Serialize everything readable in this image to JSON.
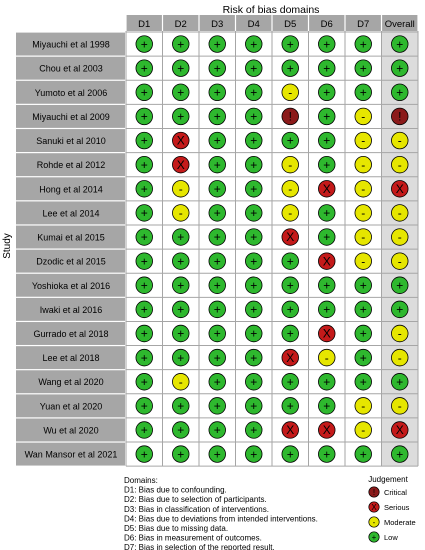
{
  "chart_data": {
    "type": "table",
    "title": "Risk of bias domains",
    "ylabel": "Study",
    "domains": [
      "D1",
      "D2",
      "D3",
      "D4",
      "D5",
      "D6",
      "D7",
      "Overall"
    ],
    "studies": [
      {
        "name": "Miyauchi et al 1998",
        "judgements": [
          "Low",
          "Low",
          "Low",
          "Low",
          "Low",
          "Low",
          "Low",
          "Low"
        ]
      },
      {
        "name": "Chou et al 2003",
        "judgements": [
          "Low",
          "Low",
          "Low",
          "Low",
          "Low",
          "Low",
          "Low",
          "Low"
        ]
      },
      {
        "name": "Yumoto et al 2006",
        "judgements": [
          "Low",
          "Low",
          "Low",
          "Low",
          "Moderate",
          "Low",
          "Low",
          "Low"
        ]
      },
      {
        "name": "Miyauchi et al 2009",
        "judgements": [
          "Low",
          "Low",
          "Low",
          "Low",
          "Critical",
          "Low",
          "Moderate",
          "Critical"
        ]
      },
      {
        "name": "Sanuki et al 2010",
        "judgements": [
          "Low",
          "Serious",
          "Low",
          "Low",
          "Low",
          "Low",
          "Moderate",
          "Moderate"
        ]
      },
      {
        "name": "Rohde et al 2012",
        "judgements": [
          "Low",
          "Serious",
          "Low",
          "Low",
          "Moderate",
          "Low",
          "Moderate",
          "Moderate"
        ]
      },
      {
        "name": "Hong et al 2014",
        "judgements": [
          "Low",
          "Moderate",
          "Low",
          "Low",
          "Moderate",
          "Serious",
          "Moderate",
          "Serious"
        ]
      },
      {
        "name": "Lee et al 2014",
        "judgements": [
          "Low",
          "Moderate",
          "Low",
          "Low",
          "Moderate",
          "Low",
          "Moderate",
          "Moderate"
        ]
      },
      {
        "name": "Kumai et al 2015",
        "judgements": [
          "Low",
          "Low",
          "Low",
          "Low",
          "Serious",
          "Low",
          "Moderate",
          "Moderate"
        ]
      },
      {
        "name": "Dzodic et al 2015",
        "judgements": [
          "Low",
          "Low",
          "Low",
          "Low",
          "Low",
          "Serious",
          "Moderate",
          "Moderate"
        ]
      },
      {
        "name": "Yoshioka et al 2016",
        "judgements": [
          "Low",
          "Low",
          "Low",
          "Low",
          "Low",
          "Low",
          "Low",
          "Low"
        ]
      },
      {
        "name": "Iwaki et al 2016",
        "judgements": [
          "Low",
          "Low",
          "Low",
          "Low",
          "Low",
          "Low",
          "Low",
          "Low"
        ]
      },
      {
        "name": "Gurrado et al 2018",
        "judgements": [
          "Low",
          "Low",
          "Low",
          "Low",
          "Low",
          "Serious",
          "Low",
          "Moderate"
        ]
      },
      {
        "name": "Lee et al 2018",
        "judgements": [
          "Low",
          "Low",
          "Low",
          "Low",
          "Serious",
          "Moderate",
          "Low",
          "Moderate"
        ]
      },
      {
        "name": "Wang et al 2020",
        "judgements": [
          "Low",
          "Moderate",
          "Low",
          "Low",
          "Low",
          "Low",
          "Low",
          "Low"
        ]
      },
      {
        "name": "Yuan et al 2020",
        "judgements": [
          "Low",
          "Low",
          "Low",
          "Low",
          "Low",
          "Low",
          "Moderate",
          "Moderate"
        ]
      },
      {
        "name": "Wu et al 2020",
        "judgements": [
          "Low",
          "Low",
          "Low",
          "Low",
          "Serious",
          "Serious",
          "Moderate",
          "Serious"
        ]
      },
      {
        "name": "Wan Mansor et al 2021",
        "judgements": [
          "Low",
          "Low",
          "Low",
          "Low",
          "Low",
          "Low",
          "Low",
          "Low"
        ]
      }
    ],
    "symbols": {
      "Critical": "!",
      "Serious": "X",
      "Moderate": "-",
      "Low": "+"
    },
    "colors": {
      "Critical": "#8b1a1a",
      "Serious": "#c41a1a",
      "Moderate": "#e6e600",
      "Low": "#2eb82e",
      "header_bg": "#a6a6a6",
      "overall_bg": "#dcdcdc",
      "row_bg": "#ffffff"
    },
    "domains_title": "Domains:",
    "domain_descriptions": [
      "D1: Bias due to confounding.",
      "D2: Bias due to selection of participants.",
      "D3: Bias in classification of interventions.",
      "D4: Bias due to deviations from intended interventions.",
      "D5: Bias due to missing data.",
      "D6: Bias in measurement of outcomes.",
      "D7: Bias in selection of the reported result."
    ],
    "legend": {
      "title": "Judgement",
      "items": [
        "Critical",
        "Serious",
        "Moderate",
        "Low"
      ]
    }
  }
}
